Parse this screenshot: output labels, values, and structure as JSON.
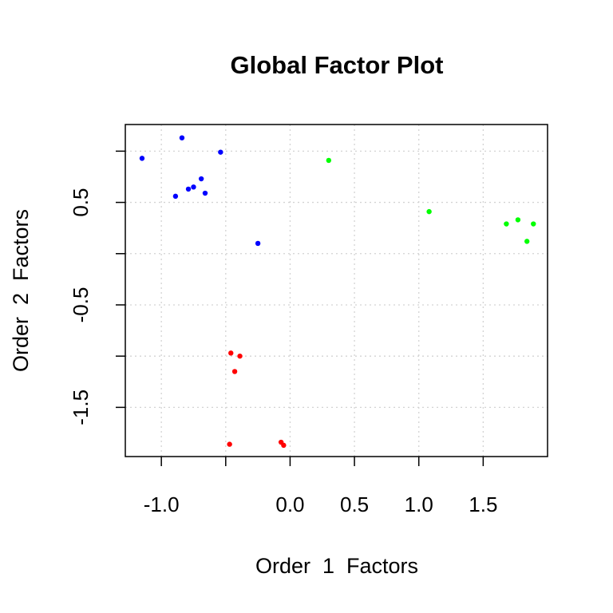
{
  "chart_data": {
    "type": "scatter",
    "title": "Global Factor Plot",
    "xlabel": "Order  1  Factors",
    "ylabel": "Order  2  Factors",
    "xlim": [
      -1.28,
      2.0
    ],
    "ylim": [
      -1.98,
      1.26
    ],
    "x_ticks": [
      -1.0,
      -0.5,
      0.0,
      0.5,
      1.0,
      1.5
    ],
    "x_tick_labels": [
      "-1.0",
      "",
      "0.0",
      "0.5",
      "1.0",
      "1.5"
    ],
    "y_ticks": [
      -2.0,
      -1.5,
      -1.0,
      -0.5,
      0.0,
      0.5,
      1.0
    ],
    "y_tick_labels": [
      "",
      "-1.5",
      "",
      "-0.5",
      "",
      "0.5",
      ""
    ],
    "grid": true,
    "series": [
      {
        "color": "#0000ff",
        "points": [
          {
            "x": -1.15,
            "y": 0.93
          },
          {
            "x": -0.84,
            "y": 1.13
          },
          {
            "x": -0.54,
            "y": 0.99
          },
          {
            "x": -0.69,
            "y": 0.73
          },
          {
            "x": -0.75,
            "y": 0.65
          },
          {
            "x": -0.79,
            "y": 0.63
          },
          {
            "x": -0.66,
            "y": 0.59
          },
          {
            "x": -0.89,
            "y": 0.56
          },
          {
            "x": -0.25,
            "y": 0.1
          }
        ]
      },
      {
        "color": "#00ff00",
        "points": [
          {
            "x": 0.3,
            "y": 0.91
          },
          {
            "x": 1.08,
            "y": 0.41
          },
          {
            "x": 1.68,
            "y": 0.29
          },
          {
            "x": 1.77,
            "y": 0.33
          },
          {
            "x": 1.89,
            "y": 0.29
          },
          {
            "x": 1.84,
            "y": 0.12
          }
        ]
      },
      {
        "color": "#ff0000",
        "points": [
          {
            "x": -0.46,
            "y": -0.97
          },
          {
            "x": -0.39,
            "y": -1.0
          },
          {
            "x": -0.43,
            "y": -1.15
          },
          {
            "x": -0.47,
            "y": -1.86
          },
          {
            "x": -0.07,
            "y": -1.84
          },
          {
            "x": -0.05,
            "y": -1.87
          }
        ]
      }
    ]
  }
}
